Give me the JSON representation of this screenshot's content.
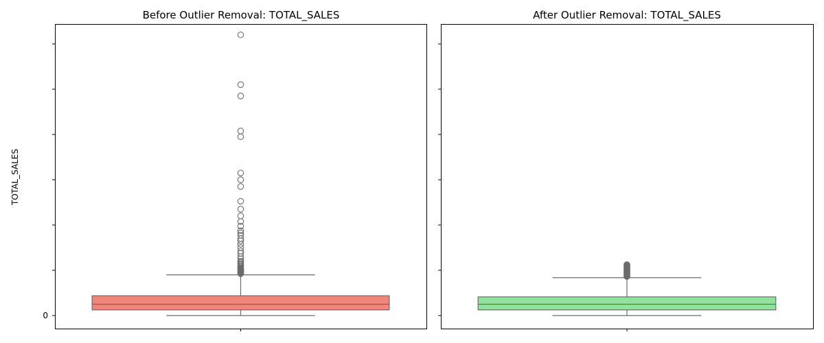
{
  "chart_data": [
    {
      "type": "box",
      "title": "Before Outlier Removal: TOTAL_SALES",
      "ylabel": "TOTAL_SALES",
      "xlabel": "",
      "y_tick_labels": [
        "0"
      ],
      "ylim": [
        -1.0,
        26.5
      ],
      "grid": false,
      "color": "#f0857a",
      "series": [
        {
          "whisker_low": 0.0,
          "q1": 0.5,
          "median": 1.0,
          "q3": 1.75,
          "whisker_high": 3.6,
          "outliers": [
            3.7,
            3.75,
            3.8,
            3.85,
            3.9,
            3.95,
            4.0,
            4.05,
            4.1,
            4.15,
            4.2,
            4.3,
            4.4,
            4.5,
            4.6,
            4.7,
            4.8,
            5.0,
            5.2,
            5.5,
            5.7,
            6.0,
            6.3,
            6.6,
            6.8,
            7.1,
            7.3,
            7.5,
            7.9,
            8.3,
            8.8,
            9.4,
            10.1,
            11.4,
            12.0,
            12.6,
            15.8,
            16.3,
            19.4,
            20.4,
            24.8
          ]
        }
      ]
    },
    {
      "type": "box",
      "title": "After Outlier Removal: TOTAL_SALES",
      "ylabel": "",
      "xlabel": "",
      "y_tick_labels": [],
      "ylim": [
        -1.0,
        26.5
      ],
      "grid": false,
      "color": "#90e39a",
      "series": [
        {
          "whisker_low": 0.0,
          "q1": 0.5,
          "median": 1.0,
          "q3": 1.65,
          "whisker_high": 3.35,
          "outliers": [
            3.45,
            3.5,
            3.55,
            3.6,
            3.65,
            3.7,
            3.75,
            3.8,
            3.85,
            3.9,
            3.95,
            4.0,
            4.05,
            4.1,
            4.15,
            4.2,
            4.25,
            4.3,
            4.35,
            4.4,
            4.45,
            4.5
          ]
        }
      ]
    }
  ]
}
